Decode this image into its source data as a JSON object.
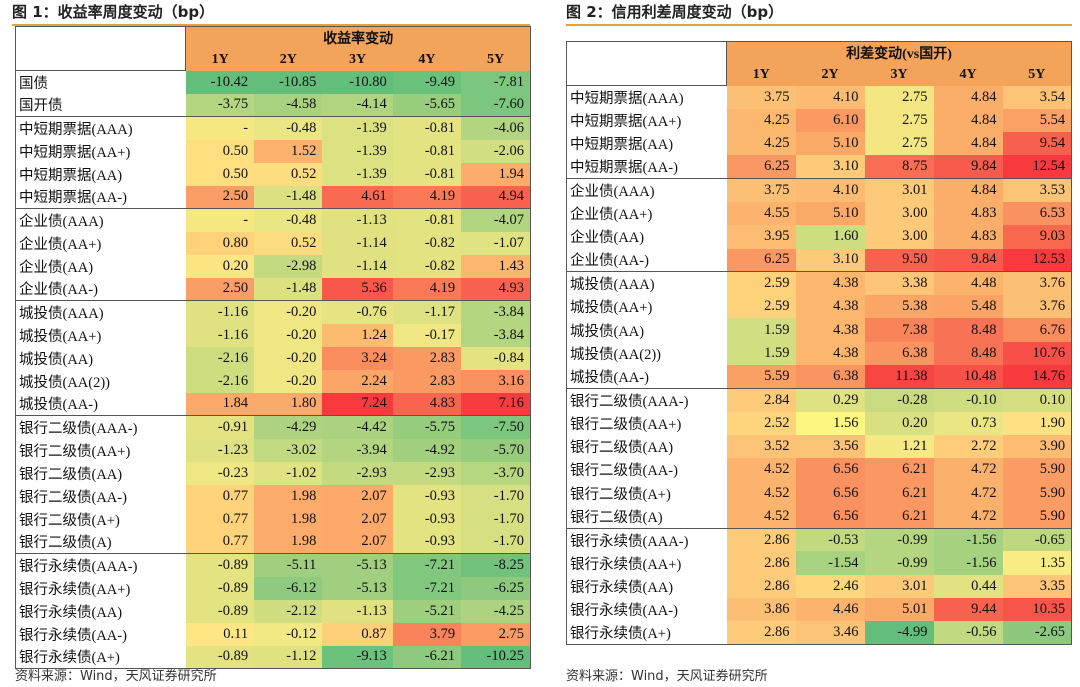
{
  "left": {
    "title": "图 1：收益率周度变动（bp）",
    "header": "收益率变动",
    "columns": [
      "1Y",
      "2Y",
      "3Y",
      "4Y",
      "5Y"
    ],
    "source": "资料来源：Wind，天风证券研究所",
    "groups": [
      [
        {
          "label": "国债",
          "values": [
            "-10.42",
            "-10.85",
            "-10.80",
            "-9.49",
            "-7.81"
          ],
          "colors": [
            "#63be7b",
            "#63be7b",
            "#63be7b",
            "#69c17c",
            "#7cc67e"
          ]
        },
        {
          "label": "国开债",
          "values": [
            "-3.75",
            "-4.58",
            "-4.14",
            "-5.65",
            "-7.60"
          ],
          "colors": [
            "#b5d680",
            "#a9d27f",
            "#b0d480",
            "#98cd7e",
            "#7cc67e"
          ]
        }
      ],
      [
        {
          "label": "中短期票据(AAA)",
          "values": [
            "-",
            "-0.48",
            "-1.39",
            "-0.81",
            "-4.06"
          ],
          "colors": [
            "#f6e883",
            "#eae683",
            "#dce181",
            "#e4e382",
            "#b1d580"
          ]
        },
        {
          "label": "中短期票据(AA+)",
          "values": [
            "0.50",
            "1.52",
            "-1.39",
            "-0.81",
            "-2.06"
          ],
          "colors": [
            "#fedf80",
            "#fcb36d",
            "#dce181",
            "#e4e382",
            "#d2de81"
          ]
        },
        {
          "label": "中短期票据(AA)",
          "values": [
            "0.50",
            "0.52",
            "-1.39",
            "-0.81",
            "1.94"
          ],
          "colors": [
            "#fedf80",
            "#fedd80",
            "#dce181",
            "#e4e382",
            "#fcac6b"
          ]
        },
        {
          "label": "中短期票据(AA-)",
          "values": [
            "2.50",
            "-1.48",
            "4.61",
            "4.19",
            "4.94"
          ],
          "colors": [
            "#fb9d66",
            "#dbe081",
            "#f86b52",
            "#f97856",
            "#f8624e"
          ]
        }
      ],
      [
        {
          "label": "企业债(AAA)",
          "values": [
            "-",
            "-0.48",
            "-1.13",
            "-0.81",
            "-4.07"
          ],
          "colors": [
            "#f6e883",
            "#eae683",
            "#e0e282",
            "#e4e382",
            "#b1d580"
          ]
        },
        {
          "label": "企业债(AA+)",
          "values": [
            "0.80",
            "0.52",
            "-1.14",
            "-0.82",
            "-1.07"
          ],
          "colors": [
            "#fed27b",
            "#fedd80",
            "#e0e282",
            "#e4e382",
            "#e1e282"
          ]
        },
        {
          "label": "企业债(AA)",
          "values": [
            "0.20",
            "-2.98",
            "-1.14",
            "-0.82",
            "1.43"
          ],
          "colors": [
            "#fde583",
            "#c3da81",
            "#e0e282",
            "#e4e382",
            "#fcb66e"
          ]
        },
        {
          "label": "企业债(AA-)",
          "values": [
            "2.50",
            "-1.48",
            "5.36",
            "4.19",
            "4.93"
          ],
          "colors": [
            "#fb9d66",
            "#dbe081",
            "#f8574b",
            "#f97856",
            "#f8624e"
          ]
        }
      ],
      [
        {
          "label": "城投债(AAA)",
          "values": [
            "-1.16",
            "-0.20",
            "-0.76",
            "-1.17",
            "-3.84"
          ],
          "colors": [
            "#e0e282",
            "#f0e784",
            "#e6e383",
            "#dfe282",
            "#b4d680"
          ]
        },
        {
          "label": "城投债(AA+)",
          "values": [
            "-1.16",
            "-0.20",
            "1.24",
            "-0.17",
            "-3.84"
          ],
          "colors": [
            "#e0e282",
            "#f0e784",
            "#fcbc70",
            "#f0e784",
            "#b4d680"
          ]
        },
        {
          "label": "城投债(AA)",
          "values": [
            "-2.16",
            "-0.20",
            "3.24",
            "2.83",
            "-0.84"
          ],
          "colors": [
            "#cfdd81",
            "#f0e784",
            "#fa8d5e",
            "#fa9962",
            "#e4e382"
          ]
        },
        {
          "label": "城投债(AA(2))",
          "values": [
            "-2.16",
            "-0.20",
            "2.24",
            "2.83",
            "3.16"
          ],
          "colors": [
            "#cfdd81",
            "#f0e784",
            "#fba567",
            "#fa9962",
            "#fa8f5f"
          ]
        },
        {
          "label": "城投债(AA-)",
          "values": [
            "1.84",
            "1.80",
            "7.24",
            "4.83",
            "7.16"
          ],
          "colors": [
            "#fca96a",
            "#fcaa6a",
            "#f8393d",
            "#f8654f",
            "#f83b3e"
          ]
        }
      ],
      [
        {
          "label": "银行二级债(AAA-)",
          "values": [
            "-0.91",
            "-4.29",
            "-4.42",
            "-5.75",
            "-7.50"
          ],
          "colors": [
            "#e3e382",
            "#add380",
            "#abd37f",
            "#96cc7e",
            "#7dc67e"
          ]
        },
        {
          "label": "银行二级债(AA+)",
          "values": [
            "-1.23",
            "-3.02",
            "-3.94",
            "-4.92",
            "-5.70"
          ],
          "colors": [
            "#dee282",
            "#c2da81",
            "#b3d580",
            "#a3d07f",
            "#97cc7e"
          ]
        },
        {
          "label": "银行二级债(AA)",
          "values": [
            "-0.23",
            "-1.02",
            "-2.93",
            "-2.93",
            "-3.70"
          ],
          "colors": [
            "#efe784",
            "#e1e282",
            "#c4da81",
            "#c4da81",
            "#b6d680"
          ]
        },
        {
          "label": "银行二级债(AA-)",
          "values": [
            "0.77",
            "1.98",
            "2.07",
            "-0.93",
            "-1.70"
          ],
          "colors": [
            "#fed37b",
            "#fcab6b",
            "#fca96a",
            "#e3e382",
            "#d6df81"
          ]
        },
        {
          "label": "银行二级债(A+)",
          "values": [
            "0.77",
            "1.98",
            "2.07",
            "-0.93",
            "-1.70"
          ],
          "colors": [
            "#fed37b",
            "#fcab6b",
            "#fca96a",
            "#e3e382",
            "#d6df81"
          ]
        },
        {
          "label": "银行二级债(A)",
          "values": [
            "0.77",
            "1.98",
            "2.07",
            "-0.93",
            "-1.70"
          ],
          "colors": [
            "#fed37b",
            "#fcab6b",
            "#fca96a",
            "#e3e382",
            "#d6df81"
          ]
        }
      ],
      [
        {
          "label": "银行永续债(AAA-)",
          "values": [
            "-0.89",
            "-5.11",
            "-5.13",
            "-7.21",
            "-8.25"
          ],
          "colors": [
            "#e3e382",
            "#a0cf7f",
            "#a0cf7f",
            "#82c77e",
            "#72c27d"
          ]
        },
        {
          "label": "银行永续债(AA+)",
          "values": [
            "-0.89",
            "-6.12",
            "-5.13",
            "-7.21",
            "-6.25"
          ],
          "colors": [
            "#e3e382",
            "#8fca7e",
            "#a0cf7f",
            "#82c77e",
            "#8ec97e"
          ]
        },
        {
          "label": "银行永续债(AA)",
          "values": [
            "-0.89",
            "-2.12",
            "-1.13",
            "-5.21",
            "-4.25"
          ],
          "colors": [
            "#e3e382",
            "#d0dd81",
            "#e0e282",
            "#9ecf7f",
            "#add380"
          ]
        },
        {
          "label": "银行永续债(AA-)",
          "values": [
            "0.11",
            "-0.12",
            "0.87",
            "3.79",
            "2.75"
          ],
          "colors": [
            "#fde683",
            "#f2e884",
            "#fed079",
            "#f9835a",
            "#fa9c63"
          ]
        },
        {
          "label": "银行永续债(A+)",
          "values": [
            "-0.89",
            "-1.12",
            "-9.13",
            "-6.21",
            "-10.25"
          ],
          "colors": [
            "#e3e382",
            "#e0e282",
            "#6cc27d",
            "#8dc97e",
            "#63be7b"
          ]
        }
      ]
    ]
  },
  "right": {
    "title": "图 2：信用利差周度变动（bp）",
    "header": "利差变动(vs国开)",
    "columns": [
      "1Y",
      "2Y",
      "3Y",
      "4Y",
      "5Y"
    ],
    "source": "资料来源：Wind，天风证券研究所",
    "groups": [
      [
        {
          "label": "中短期票据(AAA)",
          "values": [
            "3.75",
            "4.10",
            "2.75",
            "4.84",
            "3.54"
          ],
          "colors": [
            "#fcc074",
            "#fcbb72",
            "#f4e683",
            "#fbad6a",
            "#fcc376"
          ]
        },
        {
          "label": "中短期票据(AA+)",
          "values": [
            "4.25",
            "6.10",
            "2.75",
            "4.84",
            "5.54"
          ],
          "colors": [
            "#fcb86f",
            "#fa9a62",
            "#f4e683",
            "#fbad6a",
            "#fba166"
          ]
        },
        {
          "label": "中短期票据(AA)",
          "values": [
            "4.25",
            "5.10",
            "2.75",
            "4.84",
            "9.54"
          ],
          "colors": [
            "#fcb86f",
            "#fba967",
            "#f4e683",
            "#fbad6a",
            "#f8604e"
          ]
        },
        {
          "label": "中短期票据(AA-)",
          "values": [
            "6.25",
            "3.10",
            "8.75",
            "9.84",
            "12.54"
          ],
          "colors": [
            "#fa9762",
            "#fcca78",
            "#f86d53",
            "#f85b4c",
            "#f83a3e"
          ]
        }
      ],
      [
        {
          "label": "企业债(AAA)",
          "values": [
            "3.75",
            "4.10",
            "3.01",
            "4.84",
            "3.53"
          ],
          "colors": [
            "#fcc074",
            "#fcbb72",
            "#fcca79",
            "#fbad6a",
            "#fcc376"
          ]
        },
        {
          "label": "企业债(AA+)",
          "values": [
            "4.55",
            "5.10",
            "3.00",
            "4.83",
            "6.53"
          ],
          "colors": [
            "#fcb36d",
            "#fba967",
            "#fcca79",
            "#fbad6a",
            "#fa9160"
          ]
        },
        {
          "label": "企业债(AA)",
          "values": [
            "3.95",
            "1.60",
            "3.00",
            "4.83",
            "9.03"
          ],
          "colors": [
            "#fcbd72",
            "#cfdd81",
            "#fcca79",
            "#fbad6a",
            "#f8684f"
          ]
        },
        {
          "label": "企业债(AA-)",
          "values": [
            "6.25",
            "3.10",
            "9.50",
            "9.84",
            "12.53"
          ],
          "colors": [
            "#fa9762",
            "#fcca78",
            "#f8614e",
            "#f85b4c",
            "#f83a3e"
          ]
        }
      ],
      [
        {
          "label": "城投债(AAA)",
          "values": [
            "2.59",
            "4.38",
            "3.38",
            "4.48",
            "3.76"
          ],
          "colors": [
            "#fed27b",
            "#fcb66e",
            "#fcc577",
            "#fcb46d",
            "#fcc074"
          ]
        },
        {
          "label": "城投债(AA+)",
          "values": [
            "2.59",
            "4.38",
            "5.38",
            "5.48",
            "3.76"
          ],
          "colors": [
            "#fed27b",
            "#fcb66e",
            "#fba667",
            "#fba466",
            "#fcc074"
          ]
        },
        {
          "label": "城投债(AA)",
          "values": [
            "1.59",
            "4.38",
            "7.38",
            "8.48",
            "6.76"
          ],
          "colors": [
            "#d1de81",
            "#fcb66e",
            "#f9845a",
            "#f87255",
            "#fa8d5e"
          ]
        },
        {
          "label": "城投债(AA(2))",
          "values": [
            "1.59",
            "4.38",
            "6.38",
            "8.48",
            "10.76"
          ],
          "colors": [
            "#d1de81",
            "#fcb66e",
            "#fa9561",
            "#f87255",
            "#f84f48"
          ]
        },
        {
          "label": "城投债(AA-)",
          "values": [
            "5.59",
            "6.38",
            "11.38",
            "10.48",
            "14.76"
          ],
          "colors": [
            "#fba065",
            "#fa9561",
            "#f84544",
            "#f85147",
            "#f8393d"
          ]
        }
      ],
      [
        {
          "label": "银行二级债(AAA-)",
          "values": [
            "2.84",
            "0.29",
            "-0.28",
            "-0.10",
            "0.10"
          ],
          "colors": [
            "#fdcb79",
            "#dee282",
            "#c9db81",
            "#cfdd81",
            "#d5df81"
          ]
        },
        {
          "label": "银行二级债(AA+)",
          "values": [
            "2.52",
            "1.56",
            "0.20",
            "0.73",
            "1.90"
          ],
          "colors": [
            "#fed47c",
            "#fef883",
            "#d8e082",
            "#eae683",
            "#fde183"
          ]
        },
        {
          "label": "银行二级债(AA)",
          "values": [
            "3.52",
            "3.56",
            "1.21",
            "2.72",
            "3.90"
          ],
          "colors": [
            "#fcc376",
            "#fcc276",
            "#f5e984",
            "#fdcd7a",
            "#fcbd72"
          ]
        },
        {
          "label": "银行二级债(AA-)",
          "values": [
            "4.52",
            "6.56",
            "6.21",
            "4.72",
            "5.90"
          ],
          "colors": [
            "#fcb36d",
            "#fa9160",
            "#fa9762",
            "#fbb06b",
            "#fa9c63"
          ]
        },
        {
          "label": "银行二级债(A+)",
          "values": [
            "4.52",
            "6.56",
            "6.21",
            "4.72",
            "5.90"
          ],
          "colors": [
            "#fcb36d",
            "#fa9160",
            "#fa9762",
            "#fbb06b",
            "#fa9c63"
          ]
        },
        {
          "label": "银行二级债(A)",
          "values": [
            "4.52",
            "6.56",
            "6.21",
            "4.72",
            "5.90"
          ],
          "colors": [
            "#fcb36d",
            "#fa9160",
            "#fa9762",
            "#fbb06b",
            "#fa9c63"
          ]
        }
      ],
      [
        {
          "label": "银行永续债(AAA-)",
          "values": [
            "2.86",
            "-0.53",
            "-0.99",
            "-1.56",
            "-0.65"
          ],
          "colors": [
            "#fdcb79",
            "#c2d980",
            "#b5d680",
            "#a6d17f",
            "#bed880"
          ]
        },
        {
          "label": "银行永续债(AA+)",
          "values": [
            "2.86",
            "-1.54",
            "-0.99",
            "-1.56",
            "1.35"
          ],
          "colors": [
            "#fdcb79",
            "#a7d27f",
            "#b5d680",
            "#a6d17f",
            "#f9ec84"
          ]
        },
        {
          "label": "银行永续债(AA)",
          "values": [
            "2.86",
            "2.46",
            "3.01",
            "0.44",
            "3.35"
          ],
          "colors": [
            "#fdcb79",
            "#fed67c",
            "#fcca79",
            "#e1e382",
            "#fcc577"
          ]
        },
        {
          "label": "银行永续债(AA-)",
          "values": [
            "3.86",
            "4.46",
            "5.01",
            "9.44",
            "10.35"
          ],
          "colors": [
            "#fcbe73",
            "#fcb46d",
            "#fbaa68",
            "#f8624e",
            "#f8554a"
          ]
        },
        {
          "label": "银行永续债(A+)",
          "values": [
            "2.86",
            "3.46",
            "-4.99",
            "-0.56",
            "-2.65"
          ],
          "colors": [
            "#fdcb79",
            "#fcc476",
            "#63be7b",
            "#c1d980",
            "#8cc97e"
          ]
        }
      ]
    ]
  }
}
